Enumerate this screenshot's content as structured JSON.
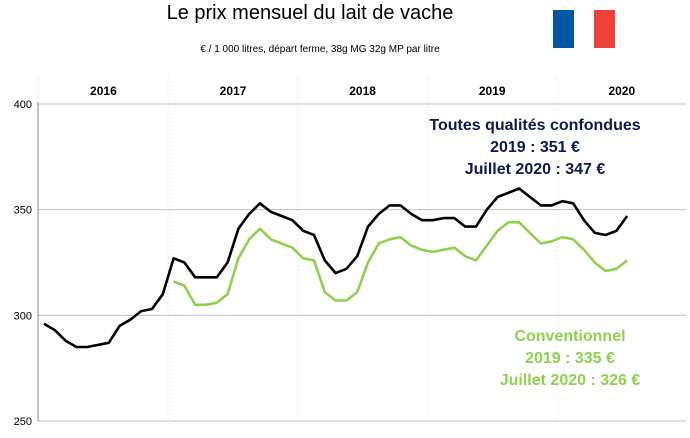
{
  "chart_data": {
    "type": "line",
    "title": "Le prix mensuel du lait de vache",
    "subtitle": "€ / 1 000 litres, départ ferme, 38g MG 32g MP par litre",
    "xlabel": "",
    "ylabel": "",
    "ylim": [
      250,
      400
    ],
    "yticks": [
      250,
      300,
      350,
      400
    ],
    "grid": true,
    "year_labels": [
      "2016",
      "2017",
      "2018",
      "2019",
      "2020"
    ],
    "series": [
      {
        "key": "total",
        "color": "#000000",
        "start_index": 0,
        "values": [
          296,
          293,
          288,
          285,
          285,
          286,
          287,
          295,
          298,
          302,
          303,
          310,
          327,
          325,
          318,
          318,
          318,
          325,
          341,
          348,
          353,
          349,
          347,
          345,
          340,
          338,
          326,
          320,
          322,
          328,
          342,
          348,
          352,
          352,
          348,
          345,
          345,
          346,
          346,
          342,
          342,
          350,
          356,
          358,
          360,
          356,
          352,
          352,
          354,
          353,
          345,
          339,
          338,
          340,
          347
        ]
      },
      {
        "key": "conventionnel",
        "color": "#8fd14f",
        "start_index": 12,
        "values": [
          316,
          314,
          305,
          305,
          306,
          310,
          327,
          336,
          341,
          336,
          334,
          332,
          327,
          326,
          311,
          307,
          307,
          311,
          325,
          334,
          336,
          337,
          333,
          331,
          330,
          331,
          332,
          328,
          326,
          333,
          340,
          344,
          344,
          339,
          334,
          335,
          337,
          336,
          331,
          325,
          321,
          322,
          326
        ]
      }
    ],
    "annotations": {
      "total": [
        "Toutes qualités confondues",
        "2019 : 351 €",
        "Juillet 2020 :  347 €"
      ],
      "conventionnel": [
        "Conventionnel",
        "2019 : 335 €",
        "Juillet 2020 : 326 €"
      ]
    }
  },
  "flag": {
    "colors": [
      "#0055a4",
      "#ffffff",
      "#ef4135"
    ]
  }
}
